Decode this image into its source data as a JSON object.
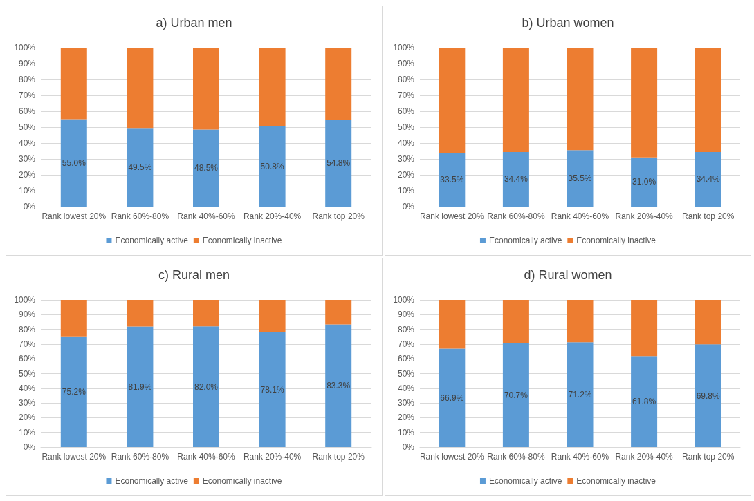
{
  "chart_data": [
    {
      "type": "bar",
      "title": "a) Urban men",
      "stacked": true,
      "grid": "y",
      "legend": "bottom",
      "categories": [
        "Rank lowest 20%",
        "Rank 60%-80%",
        "Rank 40%-60%",
        "Rank 20%-40%",
        "Rank top 20%"
      ],
      "ylim": [
        0,
        100
      ],
      "yticks": [
        {
          "value": 0,
          "label": "0%"
        },
        {
          "value": 10,
          "label": "10%"
        },
        {
          "value": 20,
          "label": "20%"
        },
        {
          "value": 30,
          "label": "30%"
        },
        {
          "value": 40,
          "label": "40%"
        },
        {
          "value": 50,
          "label": "50%"
        },
        {
          "value": 60,
          "label": "60%"
        },
        {
          "value": 70,
          "label": "70%"
        },
        {
          "value": 80,
          "label": "80%"
        },
        {
          "value": 90,
          "label": "90%"
        },
        {
          "value": 100,
          "label": "100%"
        }
      ],
      "series": [
        {
          "name": "Economically active",
          "color": "#5b9bd5",
          "values": [
            55.0,
            49.5,
            48.5,
            50.8,
            54.8
          ],
          "value_labels": [
            "55.0%",
            "49.5%",
            "48.5%",
            "50.8%",
            "54.8%"
          ]
        },
        {
          "name": "Economically inactive",
          "color": "#ed7d31",
          "values": [
            45.0,
            50.5,
            51.5,
            49.2,
            45.2
          ]
        }
      ]
    },
    {
      "type": "bar",
      "title": "b) Urban women",
      "stacked": true,
      "grid": "y",
      "legend": "bottom",
      "categories": [
        "Rank lowest 20%",
        "Rank 60%-80%",
        "Rank 40%-60%",
        "Rank 20%-40%",
        "Rank top 20%"
      ],
      "ylim": [
        0,
        100
      ],
      "yticks": [
        {
          "value": 0,
          "label": "0%"
        },
        {
          "value": 10,
          "label": "10%"
        },
        {
          "value": 20,
          "label": "20%"
        },
        {
          "value": 30,
          "label": "30%"
        },
        {
          "value": 40,
          "label": "40%"
        },
        {
          "value": 50,
          "label": "50%"
        },
        {
          "value": 60,
          "label": "60%"
        },
        {
          "value": 70,
          "label": "70%"
        },
        {
          "value": 80,
          "label": "80%"
        },
        {
          "value": 90,
          "label": "90%"
        },
        {
          "value": 100,
          "label": "100%"
        }
      ],
      "series": [
        {
          "name": "Economically active",
          "color": "#5b9bd5",
          "values": [
            33.5,
            34.4,
            35.5,
            31.0,
            34.4
          ],
          "value_labels": [
            "33.5%",
            "34.4%",
            "35.5%",
            "31.0%",
            "34.4%"
          ]
        },
        {
          "name": "Economically inactive",
          "color": "#ed7d31",
          "values": [
            66.5,
            65.6,
            64.5,
            69.0,
            65.6
          ]
        }
      ]
    },
    {
      "type": "bar",
      "title": "c) Rural men",
      "stacked": true,
      "grid": "y",
      "legend": "bottom",
      "categories": [
        "Rank lowest 20%",
        "Rank 60%-80%",
        "Rank 40%-60%",
        "Rank 20%-40%",
        "Rank top 20%"
      ],
      "ylim": [
        0,
        100
      ],
      "yticks": [
        {
          "value": 0,
          "label": "0%"
        },
        {
          "value": 10,
          "label": "10%"
        },
        {
          "value": 20,
          "label": "20%"
        },
        {
          "value": 30,
          "label": "30%"
        },
        {
          "value": 40,
          "label": "40%"
        },
        {
          "value": 50,
          "label": "50%"
        },
        {
          "value": 60,
          "label": "60%"
        },
        {
          "value": 70,
          "label": "70%"
        },
        {
          "value": 80,
          "label": "80%"
        },
        {
          "value": 90,
          "label": "90%"
        },
        {
          "value": 100,
          "label": "100%"
        }
      ],
      "series": [
        {
          "name": "Economically active",
          "color": "#5b9bd5",
          "values": [
            75.2,
            81.9,
            82.0,
            78.1,
            83.3
          ],
          "value_labels": [
            "75.2%",
            "81.9%",
            "82.0%",
            "78.1%",
            "83.3%"
          ]
        },
        {
          "name": "Economically inactive",
          "color": "#ed7d31",
          "values": [
            24.8,
            18.1,
            18.0,
            21.9,
            16.7
          ]
        }
      ]
    },
    {
      "type": "bar",
      "title": "d) Rural women",
      "stacked": true,
      "grid": "y",
      "legend": "bottom",
      "categories": [
        "Rank lowest 20%",
        "Rank 60%-80%",
        "Rank 40%-60%",
        "Rank 20%-40%",
        "Rank top 20%"
      ],
      "ylim": [
        0,
        100
      ],
      "yticks": [
        {
          "value": 0,
          "label": "0%"
        },
        {
          "value": 10,
          "label": "10%"
        },
        {
          "value": 20,
          "label": "20%"
        },
        {
          "value": 30,
          "label": "30%"
        },
        {
          "value": 40,
          "label": "40%"
        },
        {
          "value": 50,
          "label": "50%"
        },
        {
          "value": 60,
          "label": "60%"
        },
        {
          "value": 70,
          "label": "70%"
        },
        {
          "value": 80,
          "label": "80%"
        },
        {
          "value": 90,
          "label": "90%"
        },
        {
          "value": 100,
          "label": "100%"
        }
      ],
      "series": [
        {
          "name": "Economically active",
          "color": "#5b9bd5",
          "values": [
            66.9,
            70.7,
            71.2,
            61.8,
            69.8
          ],
          "value_labels": [
            "66.9%",
            "70.7%",
            "71.2%",
            "61.8%",
            "69.8%"
          ]
        },
        {
          "name": "Economically inactive",
          "color": "#ed7d31",
          "values": [
            33.1,
            29.3,
            28.8,
            38.2,
            30.2
          ]
        }
      ]
    }
  ]
}
